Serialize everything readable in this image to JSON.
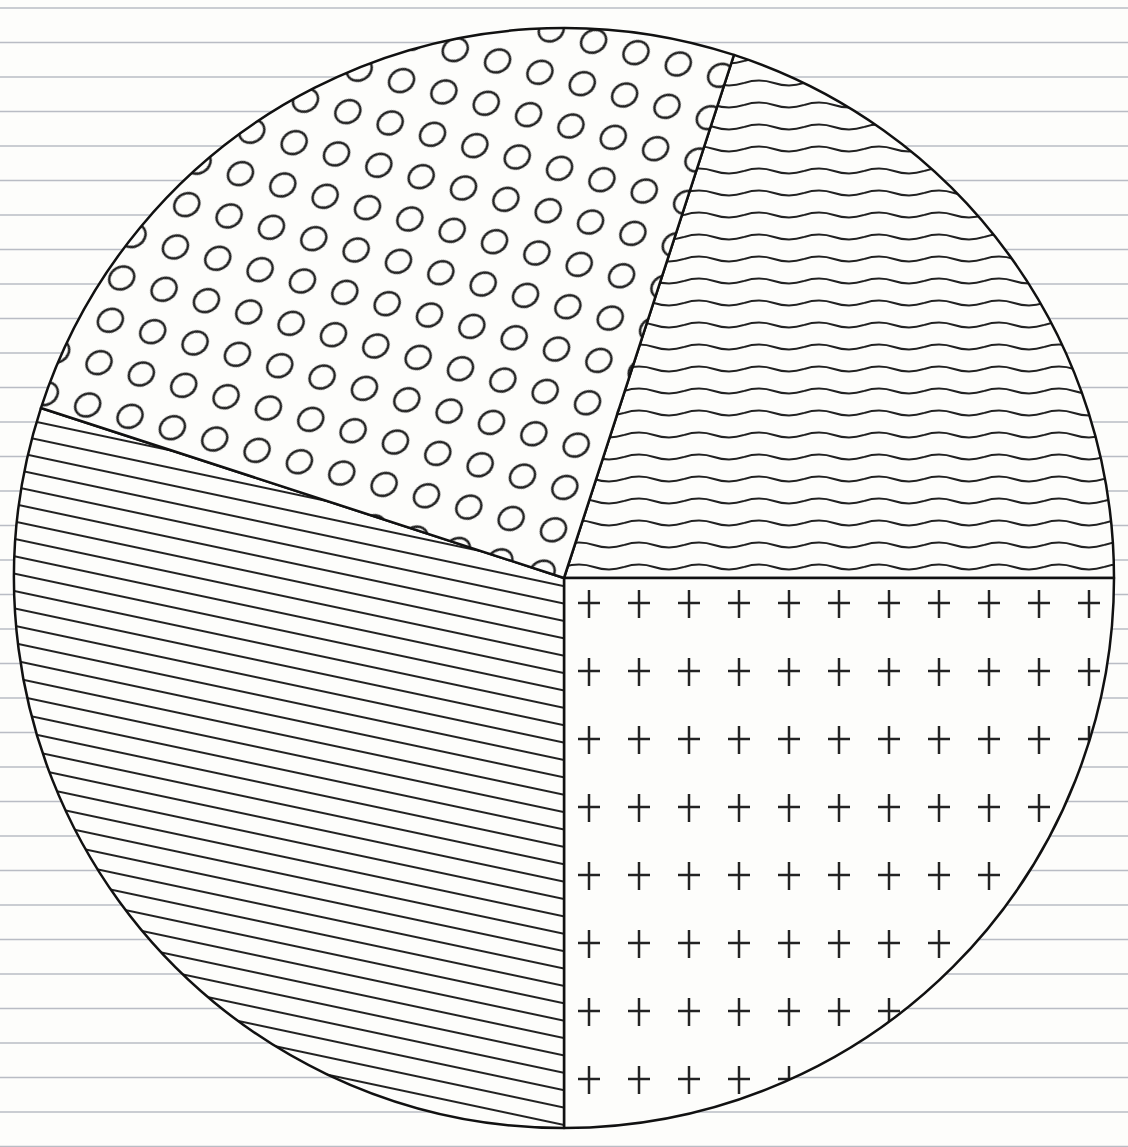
{
  "chart_data": {
    "type": "pie",
    "values": [
      72,
      90,
      108,
      90
    ]
  }
}
